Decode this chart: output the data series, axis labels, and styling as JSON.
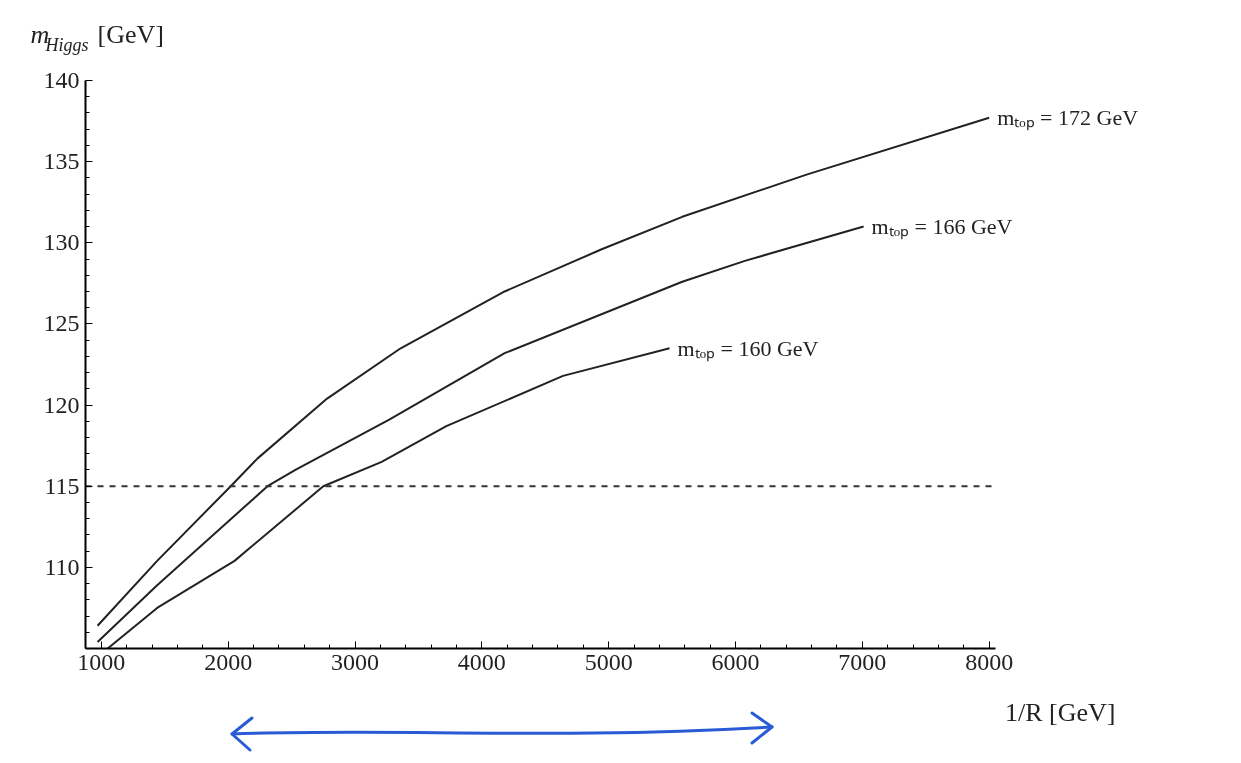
{
  "chart_data": {
    "type": "line",
    "xlabel": "1/R [GeV]",
    "ylabel": "m$_{Higgs}$ [GeV]",
    "xlim": [
      875,
      8050
    ],
    "ylim": [
      105,
      140
    ],
    "xticks": [
      1000,
      2000,
      3000,
      4000,
      5000,
      6000,
      7000,
      8000
    ],
    "yticks": [
      {
        "value": 105,
        "label": null
      },
      110,
      115,
      120,
      125,
      130,
      135,
      140
    ],
    "series": [
      {
        "name": "mₜₒₚ = 172 GeV",
        "color": "#222222",
        "x": [
          970,
          1440,
          2020,
          2230,
          2780,
          3360,
          4180,
          4945,
          5580,
          6560,
          8000
        ],
        "values": [
          106.4,
          110.4,
          115.0,
          116.7,
          120.4,
          123.5,
          127.0,
          129.6,
          131.6,
          134.2,
          137.7
        ]
      },
      {
        "name": "mₜₒₚ = 166 GeV",
        "color": "#222222",
        "x": [
          970,
          1440,
          2310,
          2530,
          3270,
          4180,
          5580,
          6080,
          7010
        ],
        "values": [
          105.4,
          108.9,
          115.0,
          116.0,
          119.1,
          123.2,
          127.6,
          128.9,
          131.0
        ]
      },
      {
        "name": "mₜₒₚ = 160 GeV",
        "color": "#222222",
        "x": [
          1050,
          1440,
          2050,
          2750,
          3210,
          3720,
          4640,
          5480
        ],
        "values": [
          105.0,
          107.5,
          110.4,
          115.0,
          116.5,
          118.7,
          121.8,
          123.5
        ]
      }
    ],
    "ref_lines": [
      {
        "axis": "y",
        "value": 115,
        "color": "#333333",
        "line_style": "dashed"
      }
    ],
    "legend": false,
    "grid": false,
    "line_style": "solid",
    "marker": "none"
  }
}
